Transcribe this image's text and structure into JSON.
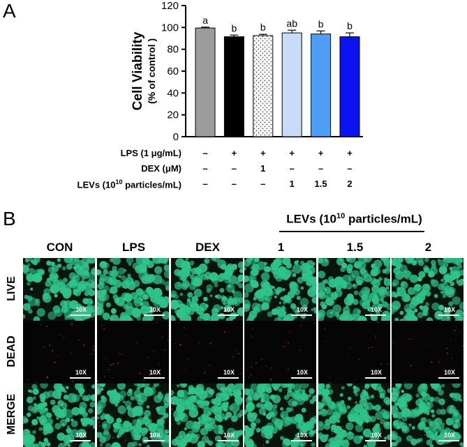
{
  "panel_a": {
    "letter": "A",
    "conditions": [
      {
        "label": "LPS (1 μg/mL)",
        "values": [
          "–",
          "+",
          "+",
          "+",
          "+",
          "+"
        ]
      },
      {
        "label": "DEX (μM)",
        "values": [
          "–",
          "–",
          "1",
          "–",
          "–",
          "–"
        ]
      },
      {
        "label": "LEVs (10",
        "label_sup": "10",
        "label_rest": " particles/mL)",
        "values": [
          "–",
          "–",
          "–",
          "1",
          "1.5",
          "2"
        ]
      }
    ]
  },
  "chart_data": {
    "type": "bar",
    "categories": [
      "",
      "",
      "",
      "",
      "",
      ""
    ],
    "values": [
      99.5,
      91.5,
      92.5,
      95.0,
      94.0,
      91.5
    ],
    "errors": [
      0.8,
      1.5,
      1.2,
      2.5,
      2.8,
      3.5
    ],
    "significance": [
      "a",
      "b",
      "b",
      "ab",
      "b",
      "b"
    ],
    "bar_colors": [
      "#9c9c9c",
      "#000000",
      "#f2f2f2",
      "#c9dcf7",
      "#4f9ef5",
      "#0a14f0"
    ],
    "bar_patterns": [
      "solid",
      "solid",
      "dots",
      "solid",
      "solid",
      "solid"
    ],
    "title": "",
    "xlabel": "",
    "ylabel": "Cell Viability",
    "ylabel_sub": "(% of control )",
    "ylim": [
      0,
      120
    ],
    "yticks": [
      0,
      20,
      40,
      60,
      80,
      100,
      120
    ]
  },
  "panel_b": {
    "letter": "B",
    "group_header_main": "LEVs (10",
    "group_header_sup": "10",
    "group_header_rest": " particles/mL)",
    "columns": [
      "CON",
      "LPS",
      "DEX",
      "1",
      "1.5",
      "2"
    ],
    "rows": [
      "LIVE",
      "DEAD",
      "MERGE"
    ],
    "magnification": "10X",
    "colors": {
      "live": "#2ec48a",
      "dead": "#d42a2a"
    }
  }
}
